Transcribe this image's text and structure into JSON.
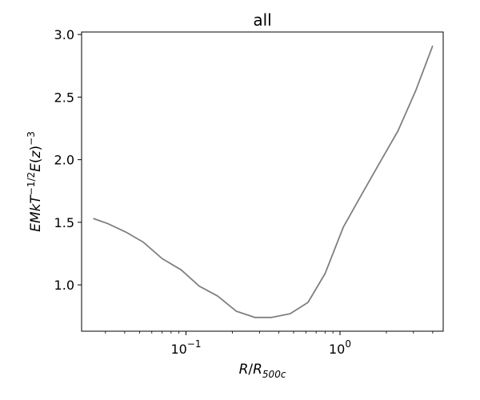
{
  "chart_data": {
    "type": "line",
    "title": "all",
    "xlabel": "R/R_500c",
    "ylabel": "EMkT^-1/2 E(z)^-3",
    "x_scale": "log",
    "xlim": [
      0.025,
      4.0
    ],
    "ylim": [
      0.63,
      3.02
    ],
    "x_ticks": [
      {
        "value": 0.1,
        "label": "10^-1"
      },
      {
        "value": 1.0,
        "label": "10^0"
      }
    ],
    "y_ticks": [
      {
        "value": 1.0,
        "label": "1.0"
      },
      {
        "value": 1.5,
        "label": "1.5"
      },
      {
        "value": 2.0,
        "label": "2.0"
      },
      {
        "value": 2.5,
        "label": "2.5"
      },
      {
        "value": 3.0,
        "label": "3.0"
      }
    ],
    "grid": false,
    "legend": "none",
    "series": [
      {
        "color": "#808080",
        "x": [
          0.025,
          0.031,
          0.041,
          0.053,
          0.07,
          0.093,
          0.122,
          0.161,
          0.212,
          0.28,
          0.36,
          0.475,
          0.62,
          0.8,
          1.05,
          1.38,
          1.8,
          2.38,
          3.1,
          4.0
        ],
        "y": [
          1.53,
          1.49,
          1.42,
          1.34,
          1.21,
          1.12,
          0.99,
          0.91,
          0.79,
          0.74,
          0.74,
          0.77,
          0.86,
          1.09,
          1.46,
          1.72,
          1.97,
          2.23,
          2.55,
          2.91
        ]
      }
    ]
  }
}
